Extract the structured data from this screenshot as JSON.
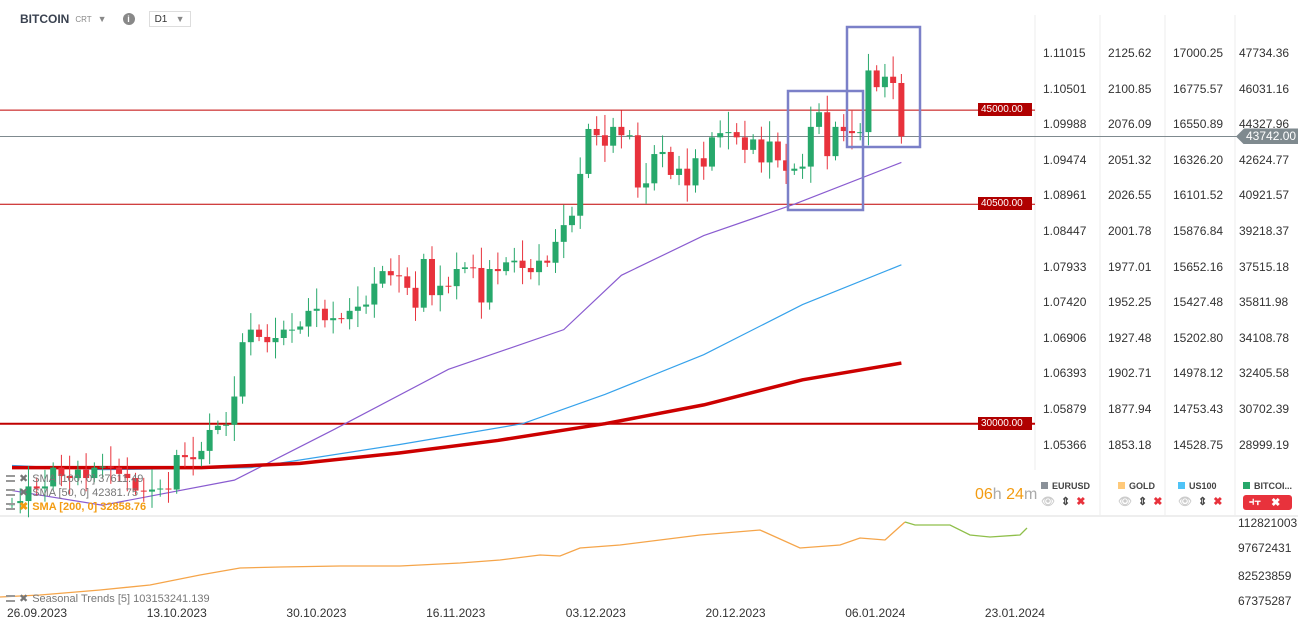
{
  "header": {
    "symbol": "BITCOIN",
    "type": "CRT",
    "timeframe": "D1"
  },
  "colors": {
    "up": "#27a86b",
    "down": "#e8323c",
    "sma50": "#8a5cd0",
    "sma100": "#36a2eb",
    "sma200": "#cc0000",
    "box": "#7b80c8",
    "season_past": "#f5a54a",
    "season_future": "#8fbf4a"
  },
  "price_levels": [
    {
      "label": "45000.00",
      "value": 45000
    },
    {
      "label": "40500.00",
      "value": 40500
    },
    {
      "label": "30000.00",
      "value": 30000
    }
  ],
  "last_price": {
    "label": "43742.00",
    "value": 43742
  },
  "axes": {
    "eurusd": [
      "1.11015",
      "1.10501",
      "1.09988",
      "1.09474",
      "1.08961",
      "1.08447",
      "1.07933",
      "1.07420",
      "1.06906",
      "1.06393",
      "1.05879",
      "1.05366"
    ],
    "gold": [
      "2125.62",
      "2100.85",
      "2076.09",
      "2051.32",
      "2026.55",
      "2001.78",
      "1977.01",
      "1952.25",
      "1927.48",
      "1902.71",
      "1877.94",
      "1853.18"
    ],
    "us100": [
      "17000.25",
      "16775.57",
      "16550.89",
      "16326.20",
      "16101.52",
      "15876.84",
      "15652.16",
      "15427.48",
      "15202.80",
      "14978.12",
      "14753.43",
      "14528.75"
    ],
    "bitcoin": [
      "47734.36",
      "46031.16",
      "44327.96",
      "42624.77",
      "40921.57",
      "39218.37",
      "37515.18",
      "35811.98",
      "34108.78",
      "32405.58",
      "30702.39",
      "28999.19"
    ],
    "seasonal": [
      "112821003",
      "97672431",
      "82523859",
      "67375287"
    ],
    "dates": [
      "26.09.2023",
      "13.10.2023",
      "30.10.2023",
      "16.11.2023",
      "03.12.2023",
      "20.12.2023",
      "06.01.2024",
      "23.01.2024"
    ]
  },
  "chart_data": {
    "type": "candlestick",
    "first_date": "26.09.2023",
    "closes": [
      26200,
      26300,
      27000,
      26900,
      27000,
      27900,
      27500,
      27400,
      27800,
      27400,
      27900,
      27950,
      27900,
      27600,
      27400,
      26800,
      26750,
      26850,
      26900,
      26850,
      28500,
      28400,
      28300,
      28700,
      29700,
      29900,
      29950,
      31300,
      33900,
      34500,
      34150,
      33900,
      34100,
      34500,
      34500,
      34650,
      35400,
      35500,
      34950,
      35050,
      35000,
      35400,
      35600,
      35700,
      36700,
      37300,
      37100,
      37050,
      36500,
      35550,
      37880,
      36150,
      36600,
      36580,
      37400,
      37480,
      37450,
      35800,
      37400,
      37300,
      37720,
      37800,
      37450,
      37250,
      37800,
      37700,
      38700,
      39500,
      39950,
      41950,
      44100,
      43800,
      43300,
      44200,
      43800,
      43800,
      41300,
      41500,
      42900,
      43000,
      41900,
      42200,
      41400,
      42700,
      42300,
      43700,
      43900,
      43950,
      43700,
      43100,
      43600,
      42500,
      43500,
      42600,
      42100,
      42200,
      42300,
      44200,
      44900,
      42800,
      44200,
      44000,
      43900,
      43950,
      46900,
      46100,
      46600,
      46300,
      43742
    ],
    "sma50": [
      [
        0,
        26800
      ],
      [
        11,
        26100
      ],
      [
        27,
        27300
      ],
      [
        39,
        29700
      ],
      [
        53,
        32600
      ],
      [
        67,
        34500
      ],
      [
        74,
        37100
      ],
      [
        84,
        39000
      ],
      [
        95,
        40500
      ],
      [
        108,
        42500
      ]
    ],
    "sma100": [
      [
        0,
        28000
      ],
      [
        11,
        27800
      ],
      [
        29,
        27900
      ],
      [
        47,
        29000
      ],
      [
        62,
        30000
      ],
      [
        72,
        31400
      ],
      [
        84,
        33300
      ],
      [
        96,
        35700
      ],
      [
        108,
        37600
      ]
    ],
    "sma200": [
      [
        0,
        27900
      ],
      [
        23,
        27900
      ],
      [
        35,
        28100
      ],
      [
        47,
        28600
      ],
      [
        59,
        29200
      ],
      [
        72,
        30000
      ],
      [
        84,
        30900
      ],
      [
        96,
        32100
      ],
      [
        108,
        32900
      ]
    ]
  },
  "legends": {
    "sma100": "SMA [100, 0] 37611.49",
    "sma50": "SMA [50, 0] 42381.75",
    "sma200": "SMA [200, 0] 32858.76",
    "seasonal": "Seasonal  Trends  [5]  103153241.139"
  },
  "timer": {
    "h": "06",
    "h_unit": "h",
    "m": "24",
    "m_unit": "m"
  },
  "instruments": [
    {
      "name": "EURUSD",
      "color": "#8a9199"
    },
    {
      "name": "GOLD",
      "color": "#ffc97a"
    },
    {
      "name": "US100",
      "color": "#4fc3f7"
    },
    {
      "name": "BITCOI...",
      "color": "#27a86b"
    }
  ]
}
